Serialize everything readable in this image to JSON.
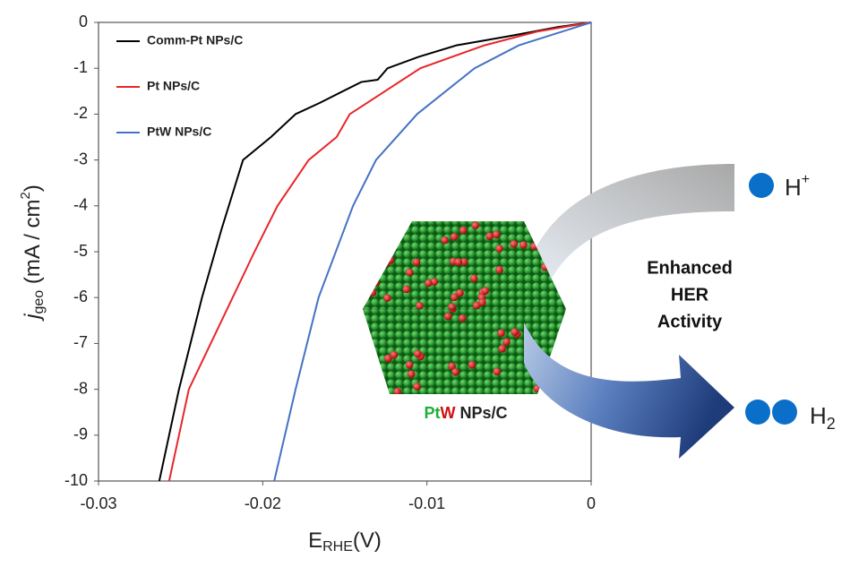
{
  "chart_data": {
    "type": "line",
    "xlabel": {
      "main": "E",
      "sub": "RHE",
      "end": "(V)"
    },
    "ylabel": {
      "main": "j",
      "sub": "geo",
      "unit": " (mA / cm",
      "sup": "2",
      "end": ")"
    },
    "xlim": [
      -0.03,
      0
    ],
    "xticks": [
      -0.03,
      -0.02,
      -0.01,
      0
    ],
    "ylim": [
      -10,
      0
    ],
    "yticks": [
      0,
      -1,
      -2,
      -3,
      -4,
      -5,
      -6,
      -7,
      -8,
      -9,
      -10
    ],
    "series": [
      {
        "name": "Comm-Pt NPs/C",
        "color": "#000000",
        "x": [
          -0.0263,
          -0.0251,
          -0.0237,
          -0.0225,
          -0.0212,
          -0.0195,
          -0.018,
          -0.0165,
          -0.014,
          -0.013,
          -0.0124,
          -0.0105,
          -0.0082,
          -0.005,
          -0.002,
          0
        ],
        "values": [
          -10,
          -8,
          -6,
          -4.5,
          -3,
          -2.5,
          -2,
          -1.75,
          -1.3,
          -1.25,
          -1,
          -0.75,
          -0.5,
          -0.3,
          -0.1,
          0
        ]
      },
      {
        "name": "Pt NPs/C",
        "color": "#e8262a",
        "x": [
          -0.0257,
          -0.0245,
          -0.0225,
          -0.0205,
          -0.0191,
          -0.0172,
          -0.0155,
          -0.0147,
          -0.0104,
          -0.0065,
          -0.0033,
          0
        ],
        "values": [
          -10,
          -8,
          -6.5,
          -5,
          -4,
          -3,
          -2.5,
          -2,
          -1,
          -0.5,
          -0.2,
          0
        ]
      },
      {
        "name": "PtW NPs/C",
        "color": "#4472c4",
        "x": [
          -0.0193,
          -0.018,
          -0.0166,
          -0.0145,
          -0.0131,
          -0.0106,
          -0.0071,
          -0.0044,
          0
        ],
        "values": [
          -10,
          -8,
          -6,
          -4,
          -3,
          -2,
          -1,
          -0.5,
          0
        ]
      }
    ],
    "annotations": {
      "particle": {
        "pt": "Pt",
        "w": "W",
        "rest": " NPs/C"
      },
      "proton": {
        "main": "H",
        "sup": "+"
      },
      "activity": [
        "Enhanced",
        "HER",
        "Activity"
      ],
      "hydrogen": {
        "main": "H",
        "sub": "2"
      }
    }
  }
}
